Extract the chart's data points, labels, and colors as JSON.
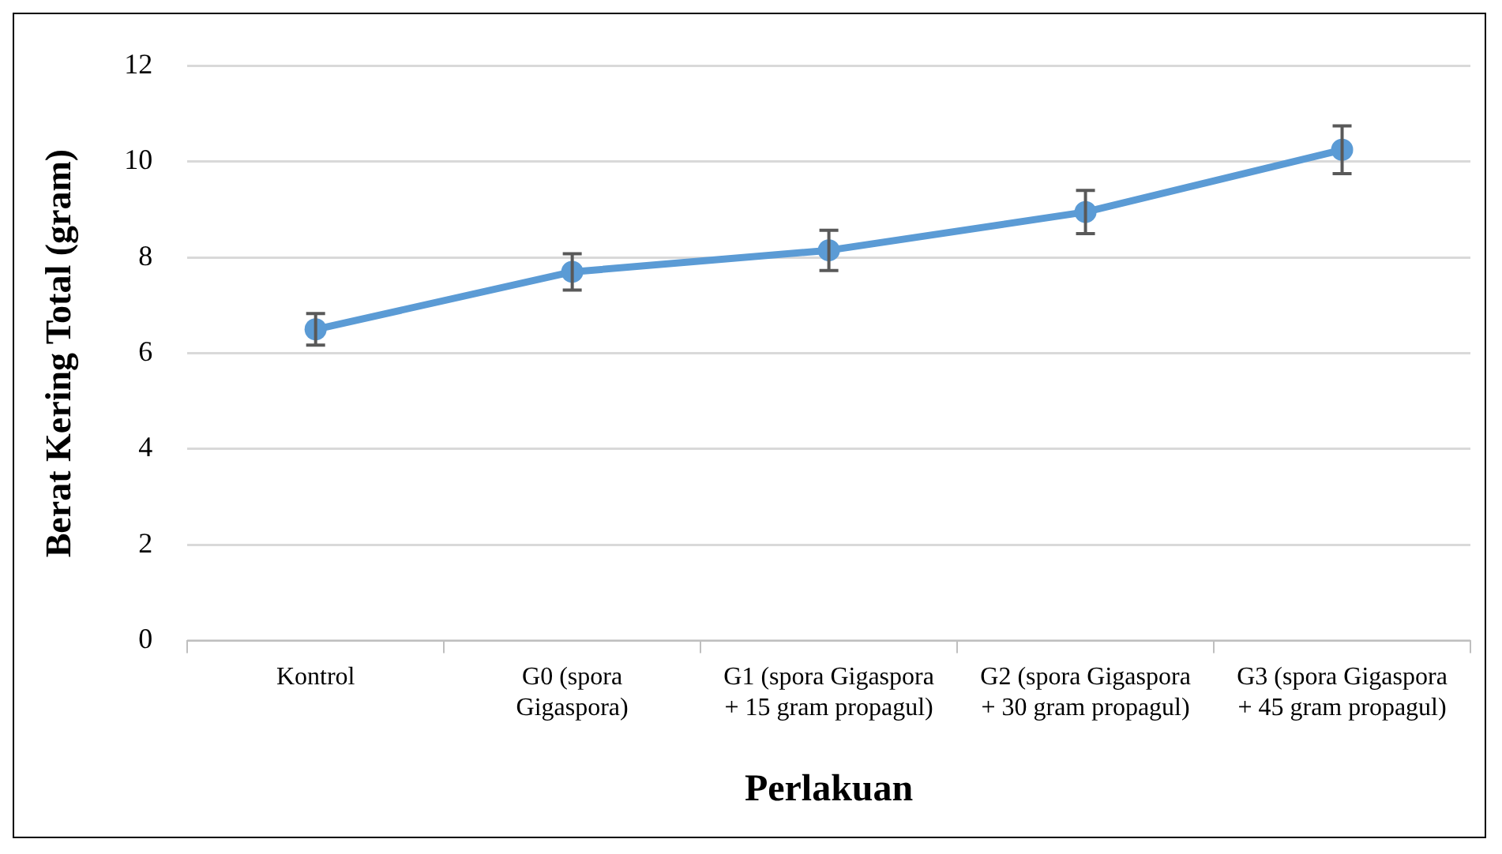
{
  "chart_data": {
    "type": "line",
    "xlabel": "Perlakuan",
    "ylabel": "Berat Kering Total (gram)",
    "categories": [
      "Kontrol",
      "G0 (spora Gigaspora)",
      "G1 (spora Gigaspora + 15 gram propagul)",
      "G2 (spora Gigaspora + 30 gram propagul)",
      "G3 (spora Gigaspora + 45 gram propagul)"
    ],
    "series": [
      {
        "color": "#5b9bd5",
        "values": [
          6.5,
          7.7,
          8.15,
          8.95,
          10.25
        ],
        "errors": [
          0.33,
          0.38,
          0.42,
          0.45,
          0.5
        ]
      }
    ],
    "ylim": [
      0,
      12
    ],
    "yticks": [
      0,
      2,
      4,
      6,
      8,
      10,
      12
    ],
    "grid": "y",
    "legend": false,
    "marker": "circle",
    "line_style": "solid"
  }
}
